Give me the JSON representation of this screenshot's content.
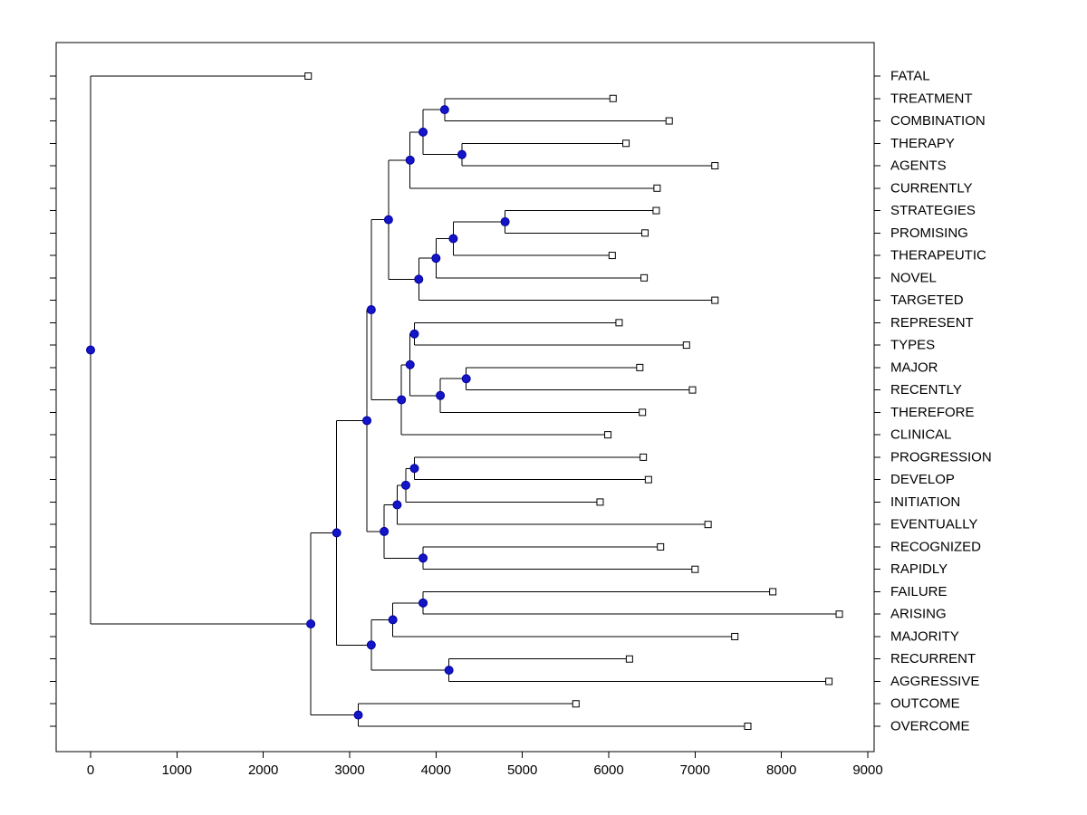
{
  "figure": {
    "title": "",
    "background": "#ffffff"
  },
  "colors": {
    "line": "#000000",
    "axis": "#000000",
    "tick_label": "#000000",
    "leaf_label": "#000000",
    "leaf_marker_fill": "#ffffff",
    "leaf_marker_stroke": "#000000",
    "branch_marker_fill": "#1414c8",
    "branch_marker_stroke": "#00009a"
  },
  "markers": {
    "leaf": "open-square-icon",
    "branch": "filled-circle-icon"
  },
  "chart_data": {
    "type": "dendrogram",
    "title": "",
    "xlabel": "",
    "ylabel": "",
    "orientation": "root-left-leaves-right",
    "legend": "none",
    "grid": false,
    "x_axis_range": [
      0,
      9000
    ],
    "x_ticks": [
      0,
      1000,
      2000,
      3000,
      4000,
      5000,
      6000,
      7000,
      8000,
      9000
    ],
    "leaf_labels": [
      "FATAL",
      "TREATMENT",
      "COMBINATION",
      "THERAPY",
      "AGENTS",
      "CURRENTLY",
      "STRATEGIES",
      "PROMISING",
      "THERAPEUTIC",
      "NOVEL",
      "TARGETED",
      "REPRESENT",
      "TYPES",
      "MAJOR",
      "RECENTLY",
      "THEREFORE",
      "CLINICAL",
      "PROGRESSION",
      "DEVELOP",
      "INITIATION",
      "EVENTUALLY",
      "RECOGNIZED",
      "RAPIDLY",
      "FAILURE",
      "ARISING",
      "MAJORITY",
      "RECURRENT",
      "AGGRESSIVE",
      "OUTCOME",
      "OVERCOME"
    ],
    "leaves": [
      {
        "label": "FATAL",
        "distance": 2520
      },
      {
        "label": "TREATMENT",
        "distance": 6050
      },
      {
        "label": "COMBINATION",
        "distance": 6700
      },
      {
        "label": "THERAPY",
        "distance": 6200
      },
      {
        "label": "AGENTS",
        "distance": 7230
      },
      {
        "label": "CURRENTLY",
        "distance": 6560
      },
      {
        "label": "STRATEGIES",
        "distance": 6550
      },
      {
        "label": "PROMISING",
        "distance": 6420
      },
      {
        "label": "THERAPEUTIC",
        "distance": 6040
      },
      {
        "label": "NOVEL",
        "distance": 6410
      },
      {
        "label": "TARGETED",
        "distance": 7230
      },
      {
        "label": "REPRESENT",
        "distance": 6120
      },
      {
        "label": "TYPES",
        "distance": 6900
      },
      {
        "label": "MAJOR",
        "distance": 6360
      },
      {
        "label": "RECENTLY",
        "distance": 6970
      },
      {
        "label": "THEREFORE",
        "distance": 6390
      },
      {
        "label": "CLINICAL",
        "distance": 5990
      },
      {
        "label": "PROGRESSION",
        "distance": 6400
      },
      {
        "label": "DEVELOP",
        "distance": 6460
      },
      {
        "label": "INITIATION",
        "distance": 5900
      },
      {
        "label": "EVENTUALLY",
        "distance": 7150
      },
      {
        "label": "RECOGNIZED",
        "distance": 6600
      },
      {
        "label": "RAPIDLY",
        "distance": 7000
      },
      {
        "label": "FAILURE",
        "distance": 7900
      },
      {
        "label": "ARISING",
        "distance": 8670
      },
      {
        "label": "MAJORITY",
        "distance": 7460
      },
      {
        "label": "RECURRENT",
        "distance": 6240
      },
      {
        "label": "AGGRESSIVE",
        "distance": 8550
      },
      {
        "label": "OUTCOME",
        "distance": 5620
      },
      {
        "label": "OVERCOME",
        "distance": 7610
      }
    ],
    "tree": {
      "x": 0,
      "children": [
        {
          "leaf": "FATAL"
        },
        {
          "x": 2550,
          "children": [
            {
              "x": 2850,
              "children": [
                {
                  "x": 3200,
                  "children": [
                    {
                      "x": 3250,
                      "children": [
                        {
                          "x": 3450,
                          "children": [
                            {
                              "x": 3700,
                              "children": [
                                {
                                  "x": 3850,
                                  "children": [
                                    {
                                      "x": 4100,
                                      "children": [
                                        {
                                          "leaf": "TREATMENT"
                                        },
                                        {
                                          "leaf": "COMBINATION"
                                        }
                                      ]
                                    },
                                    {
                                      "x": 4300,
                                      "children": [
                                        {
                                          "leaf": "THERAPY"
                                        },
                                        {
                                          "leaf": "AGENTS"
                                        }
                                      ]
                                    }
                                  ]
                                },
                                {
                                  "leaf": "CURRENTLY"
                                }
                              ]
                            },
                            {
                              "x": 3800,
                              "children": [
                                {
                                  "x": 4000,
                                  "children": [
                                    {
                                      "x": 4200,
                                      "children": [
                                        {
                                          "x": 4800,
                                          "children": [
                                            {
                                              "leaf": "STRATEGIES"
                                            },
                                            {
                                              "leaf": "PROMISING"
                                            }
                                          ]
                                        },
                                        {
                                          "leaf": "THERAPEUTIC"
                                        }
                                      ]
                                    },
                                    {
                                      "leaf": "NOVEL"
                                    }
                                  ]
                                },
                                {
                                  "leaf": "TARGETED"
                                }
                              ]
                            }
                          ]
                        },
                        {
                          "x": 3600,
                          "children": [
                            {
                              "x": 3700,
                              "children": [
                                {
                                  "x": 3750,
                                  "children": [
                                    {
                                      "leaf": "REPRESENT"
                                    },
                                    {
                                      "leaf": "TYPES"
                                    }
                                  ]
                                },
                                {
                                  "x": 4050,
                                  "children": [
                                    {
                                      "x": 4350,
                                      "children": [
                                        {
                                          "leaf": "MAJOR"
                                        },
                                        {
                                          "leaf": "RECENTLY"
                                        }
                                      ]
                                    },
                                    {
                                      "leaf": "THEREFORE"
                                    }
                                  ]
                                }
                              ]
                            },
                            {
                              "leaf": "CLINICAL"
                            }
                          ]
                        }
                      ]
                    },
                    {
                      "x": 3400,
                      "children": [
                        {
                          "x": 3550,
                          "children": [
                            {
                              "x": 3650,
                              "children": [
                                {
                                  "x": 3750,
                                  "children": [
                                    {
                                      "leaf": "PROGRESSION"
                                    },
                                    {
                                      "leaf": "DEVELOP"
                                    }
                                  ]
                                },
                                {
                                  "leaf": "INITIATION"
                                }
                              ]
                            },
                            {
                              "leaf": "EVENTUALLY"
                            }
                          ]
                        },
                        {
                          "x": 3850,
                          "children": [
                            {
                              "leaf": "RECOGNIZED"
                            },
                            {
                              "leaf": "RAPIDLY"
                            }
                          ]
                        }
                      ]
                    }
                  ]
                },
                {
                  "x": 3250,
                  "children": [
                    {
                      "x": 3500,
                      "children": [
                        {
                          "x": 3850,
                          "children": [
                            {
                              "leaf": "FAILURE"
                            },
                            {
                              "leaf": "ARISING"
                            }
                          ]
                        },
                        {
                          "leaf": "MAJORITY"
                        }
                      ]
                    },
                    {
                      "x": 4150,
                      "children": [
                        {
                          "leaf": "RECURRENT"
                        },
                        {
                          "leaf": "AGGRESSIVE"
                        }
                      ]
                    }
                  ]
                }
              ]
            },
            {
              "x": 3100,
              "children": [
                {
                  "leaf": "OUTCOME"
                },
                {
                  "leaf": "OVERCOME"
                }
              ]
            }
          ]
        }
      ]
    }
  }
}
